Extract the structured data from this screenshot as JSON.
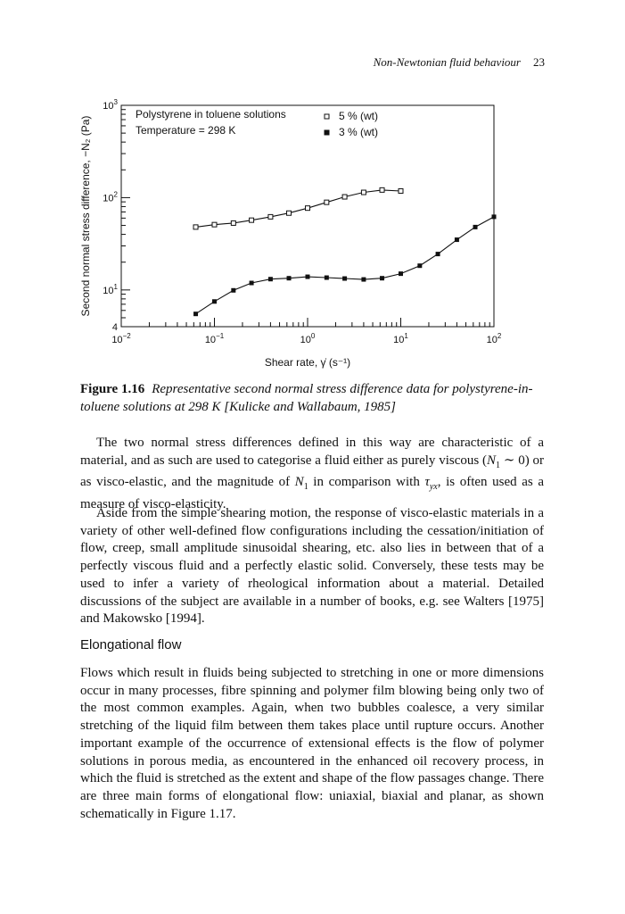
{
  "running_head": {
    "title": "Non-Newtonian fluid behaviour",
    "page_number": "23"
  },
  "figure": {
    "label": "Figure 1.16",
    "caption": "Representative second normal stress difference data for polystyrene-in-toluene solutions at 298 K [Kulicke and Wallabaum, 1985]"
  },
  "chart_data": {
    "type": "line",
    "title": "",
    "annotations": [
      "Polystyrene in toluene solutions",
      "Temperature = 298 K"
    ],
    "xlabel": "Shear rate, γ̇ (s⁻¹)",
    "ylabel": "Second normal stress difference, −N₂ (Pa)",
    "x_scale": "log",
    "y_scale": "log",
    "xlim": [
      0.01,
      100
    ],
    "ylim": [
      4,
      1000
    ],
    "x_tick_labels": [
      "10⁻²",
      "10⁻¹",
      "10⁰",
      "10¹",
      "10²"
    ],
    "y_tick_labels": [
      "4",
      "10¹",
      "10²",
      "10³"
    ],
    "legend_position": "top-right",
    "grid": false,
    "series": [
      {
        "name": "5 % (wt)",
        "marker": "open-square",
        "x": [
          0.063,
          0.1,
          0.16,
          0.25,
          0.4,
          0.63,
          1.0,
          1.6,
          2.5,
          4.0,
          6.3,
          10.0
        ],
        "y": [
          48,
          51,
          53,
          57,
          62,
          68,
          77,
          89,
          102,
          114,
          121,
          118
        ]
      },
      {
        "name": "3 % (wt)",
        "marker": "filled-square",
        "x": [
          0.063,
          0.1,
          0.16,
          0.25,
          0.4,
          0.63,
          1.0,
          1.6,
          2.5,
          4.0,
          6.3,
          10.0,
          16,
          25,
          40,
          63,
          100
        ],
        "y": [
          5.5,
          7.5,
          9.9,
          11.9,
          13.1,
          13.4,
          13.9,
          13.6,
          13.3,
          13.0,
          13.4,
          15.0,
          18.3,
          24.5,
          35,
          48,
          62
        ]
      }
    ]
  },
  "para1": {
    "t1": "The two normal stress differences defined in this way are characteristic of a material, and as such are used to categorise a fluid either as purely viscous (",
    "n1a": "N",
    "n1a_sub": "1",
    "t2": " ∼ 0) or as visco-elastic, and the magnitude of ",
    "n1b": "N",
    "n1b_sub": "1",
    "t3": " in comparison with ",
    "tau": "τ",
    "tau_sub": "yx",
    "t4": ", is often used as a measure of visco-elasticity."
  },
  "para2": "Aside from the simple shearing motion, the response of visco-elastic materials in a variety of other well-defined flow configurations including the cessation/initiation of flow, creep, small amplitude sinusoidal shearing, etc. also lies in between that of a perfectly viscous fluid and a perfectly elastic solid. Conversely, these tests may be used to infer a variety of rheological information about a material. Detailed discussions of the subject are available in a number of books, e.g. see Walters [1975] and Makowsko [1994].",
  "section_heading": "Elongational flow",
  "para3": "Flows which result in fluids being subjected to stretching in one or more dimensions occur in many processes, fibre spinning and polymer film blowing being only two of the most common examples. Again, when two bubbles coalesce, a very similar stretching of the liquid film between them takes place until rupture occurs. Another important example of the occurrence of extensional effects is the flow of polymer solutions in porous media, as encountered in the enhanced oil recovery process, in which the fluid is stretched as the extent and shape of the flow passages change. There are three main forms of elongational flow: uniaxial, biaxial and planar, as shown schematically in Figure 1.17."
}
